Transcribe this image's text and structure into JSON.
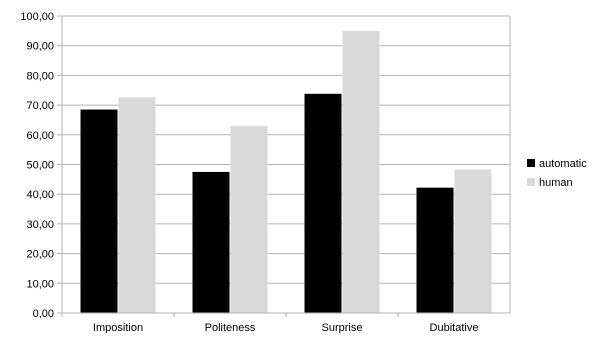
{
  "chart_data": {
    "type": "bar",
    "title": "",
    "xlabel": "",
    "ylabel": "",
    "categories": [
      "Imposition",
      "Politeness",
      "Surprise",
      "Dubitative"
    ],
    "series": [
      {
        "name": "automatic",
        "values": [
          68.5,
          47.5,
          73.8,
          42.2
        ],
        "color": "#000000"
      },
      {
        "name": "human",
        "values": [
          72.6,
          63.0,
          95.0,
          48.3
        ],
        "color": "#d9d9d9"
      }
    ],
    "ylim": [
      0,
      100
    ],
    "yticks": [
      "0,00",
      "10,00",
      "20,00",
      "30,00",
      "40,00",
      "50,00",
      "60,00",
      "70,00",
      "80,00",
      "90,00",
      "100,00"
    ],
    "grid": true,
    "legend_position": "right"
  }
}
